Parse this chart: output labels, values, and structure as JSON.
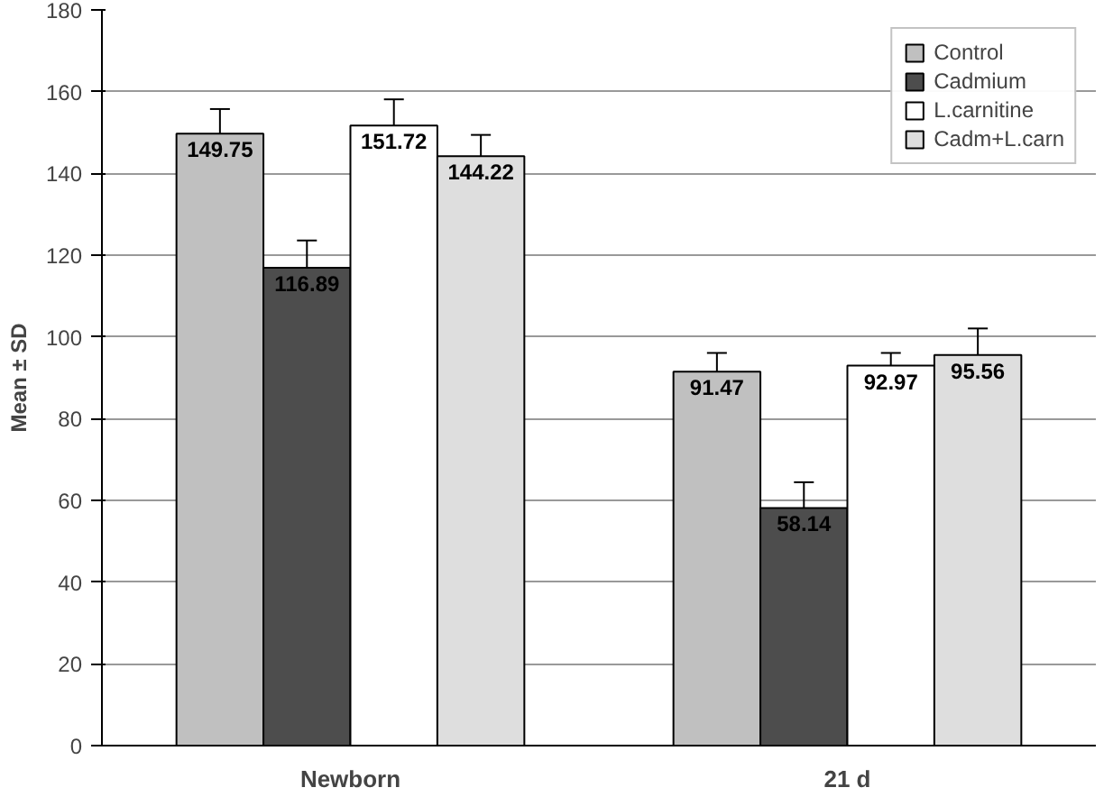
{
  "chart_data": {
    "type": "bar",
    "ylabel": "Mean ± SD",
    "categories": [
      "Newborn",
      "21 d"
    ],
    "series": [
      {
        "name": "Control",
        "color": "#c0c0c0",
        "values": [
          149.75,
          91.47
        ],
        "errors": [
          6,
          4.6
        ]
      },
      {
        "name": "Cadmium",
        "color": "#4d4d4d",
        "values": [
          116.89,
          58.14
        ],
        "errors": [
          6.7,
          6.3
        ]
      },
      {
        "name": "L.carnitine",
        "color": "#ffffff",
        "values": [
          151.72,
          92.97
        ],
        "errors": [
          6.4,
          3.1
        ]
      },
      {
        "name": "Cadm+L.carn",
        "color": "#dedede",
        "values": [
          144.22,
          95.56
        ],
        "errors": [
          5.2,
          6.5
        ]
      }
    ],
    "ylim": [
      0,
      180
    ],
    "yticks": [
      0,
      20,
      40,
      60,
      80,
      100,
      120,
      140,
      160,
      180
    ],
    "grid": "y",
    "legend": "top right",
    "data_labels": true
  }
}
